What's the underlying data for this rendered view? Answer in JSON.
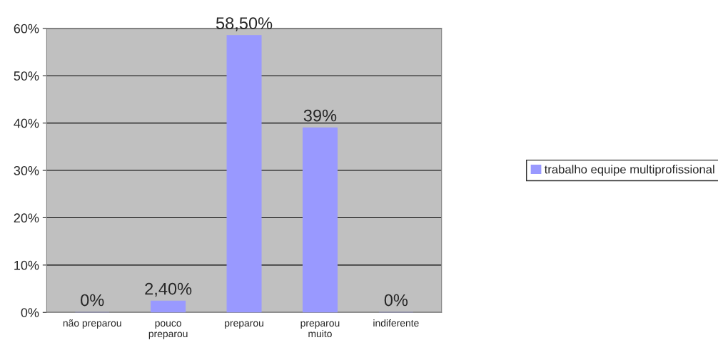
{
  "chart_data": {
    "type": "bar",
    "categories": [
      "não preparou",
      "pouco\npreparou",
      "preparou",
      "preparou\nmuito",
      "indiferente"
    ],
    "series": [
      {
        "name": "trabalho equipe multiprofissional",
        "color": "#9999ff",
        "values": [
          0,
          2.4,
          58.5,
          39,
          0
        ],
        "value_labels": [
          "0%",
          "2,40%",
          "58,50%",
          "39%",
          "0%"
        ]
      }
    ],
    "ylim": [
      0,
      60
    ],
    "yticks": [
      {
        "value": 0,
        "label": "0%"
      },
      {
        "value": 10,
        "label": "10%"
      },
      {
        "value": 20,
        "label": "20%"
      },
      {
        "value": 30,
        "label": "30%"
      },
      {
        "value": 40,
        "label": "40%"
      },
      {
        "value": 50,
        "label": "50%"
      },
      {
        "value": 60,
        "label": "60%"
      }
    ],
    "grid": "y",
    "legend": "right"
  }
}
